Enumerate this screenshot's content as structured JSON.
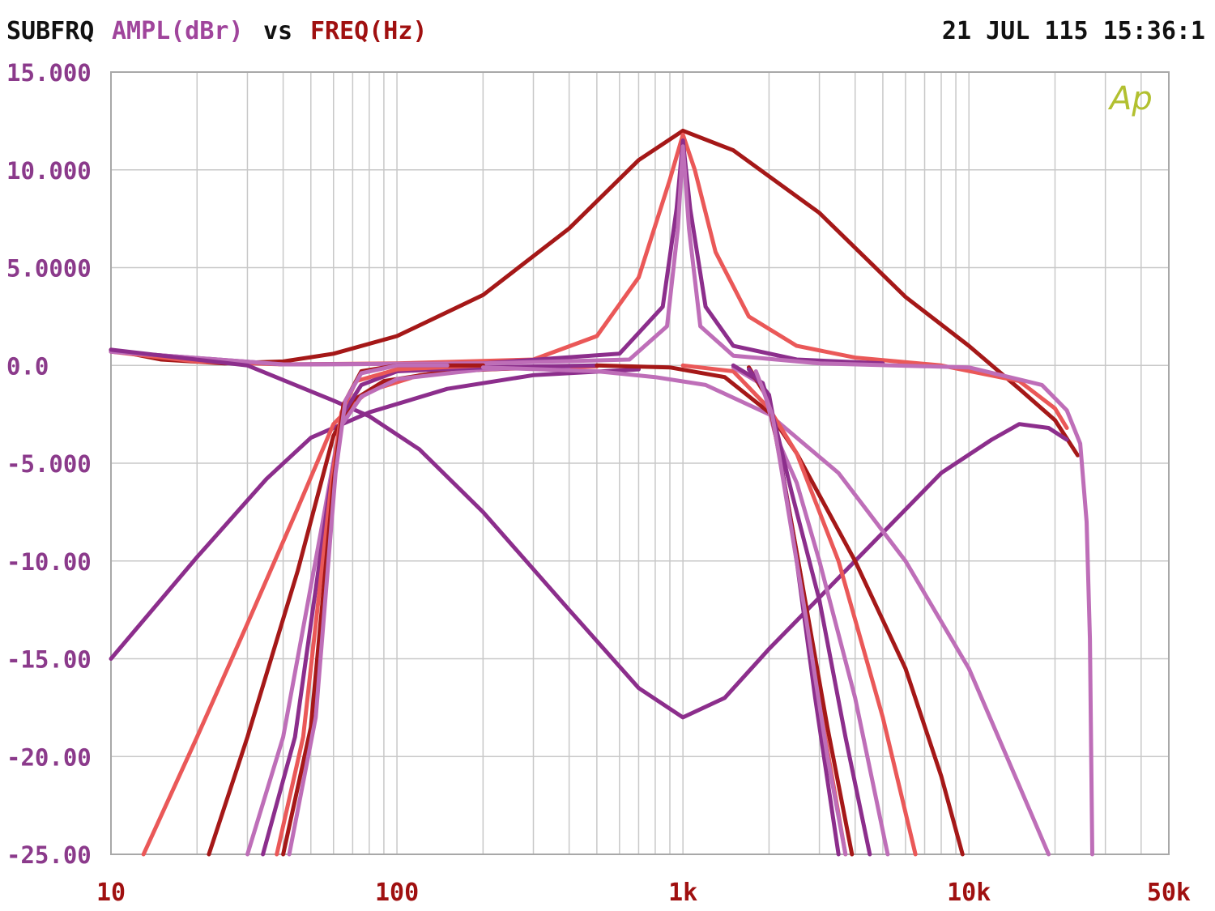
{
  "header": {
    "sweep_name": "SUBFRQ",
    "y_label": "AMPL(dBr)",
    "vs": "vs",
    "x_label": "FREQ(Hz)",
    "timestamp": "21 JUL 115 15:36:1"
  },
  "logo": {
    "text": "Ap"
  },
  "colors": {
    "background": "#ffffff",
    "grid": "#c8c8c8",
    "border": "#a8a8a8",
    "y_tick_label": "#8b3a8b",
    "x_tick_label": "#a01010",
    "header_title": "#111111",
    "header_ylabel": "#a0459c",
    "header_xlabel": "#a01010",
    "logo": "#b2c030",
    "dark_red": "#a51818",
    "salmon": "#ea5858",
    "purple": "#8c2e8c",
    "orchid": "#be6eb8"
  },
  "chart_data": {
    "type": "line",
    "x_scale": "log",
    "xlim": [
      10,
      50000
    ],
    "ylim": [
      -25,
      15
    ],
    "grid": true,
    "legend": "none",
    "y_ticks": [
      {
        "value": 15,
        "label": "15.000"
      },
      {
        "value": 10,
        "label": "10.000"
      },
      {
        "value": 5,
        "label": "5.0000"
      },
      {
        "value": 0,
        "label": "0.0"
      },
      {
        "value": -5,
        "label": "-5.000"
      },
      {
        "value": -10,
        "label": "-10.00"
      },
      {
        "value": -15,
        "label": "-15.00"
      },
      {
        "value": -20,
        "label": "-20.00"
      },
      {
        "value": -25,
        "label": "-25.00"
      }
    ],
    "x_ticks": [
      {
        "value": 10,
        "label": "10"
      },
      {
        "value": 100,
        "label": "100"
      },
      {
        "value": 1000,
        "label": "1k"
      },
      {
        "value": 10000,
        "label": "10k"
      },
      {
        "value": 50000,
        "label": "50k"
      }
    ],
    "series": [
      {
        "color": "dark_red",
        "points": [
          [
            10,
            0.8
          ],
          [
            15,
            0.3
          ],
          [
            25,
            0.1
          ],
          [
            40,
            0.2
          ],
          [
            60,
            0.6
          ],
          [
            100,
            1.5
          ],
          [
            200,
            3.6
          ],
          [
            400,
            7.0
          ],
          [
            700,
            10.5
          ],
          [
            1000,
            12.0
          ],
          [
            1500,
            11.0
          ],
          [
            3000,
            7.8
          ],
          [
            6000,
            3.5
          ],
          [
            10000,
            1.0
          ],
          [
            15000,
            -1.2
          ],
          [
            20000,
            -2.8
          ],
          [
            24000,
            -4.6
          ]
        ]
      },
      {
        "color": "salmon",
        "points": [
          [
            10,
            0.7
          ],
          [
            20,
            0.2
          ],
          [
            40,
            0.05
          ],
          [
            100,
            0.1
          ],
          [
            300,
            0.3
          ],
          [
            500,
            1.5
          ],
          [
            700,
            4.5
          ],
          [
            900,
            9.5
          ],
          [
            1000,
            11.8
          ],
          [
            1100,
            10.0
          ],
          [
            1300,
            5.8
          ],
          [
            1700,
            2.5
          ],
          [
            2500,
            1.0
          ],
          [
            4000,
            0.4
          ],
          [
            8000,
            0.0
          ],
          [
            15000,
            -0.8
          ],
          [
            20000,
            -2.2
          ],
          [
            22000,
            -3.2
          ]
        ]
      },
      {
        "color": "purple",
        "points": [
          [
            10,
            0.7
          ],
          [
            40,
            0.05
          ],
          [
            200,
            0.1
          ],
          [
            600,
            0.6
          ],
          [
            850,
            3.0
          ],
          [
            950,
            8.0
          ],
          [
            1000,
            11.5
          ],
          [
            1060,
            8.0
          ],
          [
            1200,
            3.0
          ],
          [
            1500,
            1.0
          ],
          [
            2500,
            0.3
          ],
          [
            5000,
            0.1
          ]
        ]
      },
      {
        "color": "orchid",
        "points": [
          [
            10,
            0.7
          ],
          [
            40,
            0.05
          ],
          [
            200,
            0.1
          ],
          [
            650,
            0.3
          ],
          [
            880,
            2.0
          ],
          [
            960,
            7.0
          ],
          [
            1000,
            11.2
          ],
          [
            1050,
            7.0
          ],
          [
            1150,
            2.0
          ],
          [
            1500,
            0.5
          ],
          [
            3000,
            0.1
          ],
          [
            10000,
            -0.1
          ],
          [
            18000,
            -1.0
          ],
          [
            22000,
            -2.3
          ],
          [
            24500,
            -4.0
          ],
          [
            25800,
            -8.0
          ],
          [
            26500,
            -14.0
          ],
          [
            27000,
            -25.0
          ]
        ]
      },
      {
        "color": "purple",
        "points": [
          [
            10,
            0.8
          ],
          [
            30,
            0.0
          ],
          [
            60,
            -1.8
          ],
          [
            80,
            -2.6
          ],
          [
            120,
            -4.3
          ],
          [
            200,
            -7.5
          ],
          [
            400,
            -12.5
          ],
          [
            700,
            -16.5
          ],
          [
            1000,
            -18.0
          ],
          [
            1400,
            -17.0
          ],
          [
            2000,
            -14.5
          ],
          [
            4000,
            -10.0
          ],
          [
            8000,
            -5.5
          ],
          [
            12000,
            -3.8
          ],
          [
            15000,
            -3.0
          ],
          [
            19000,
            -3.2
          ],
          [
            22000,
            -3.8
          ]
        ]
      },
      {
        "color": "purple",
        "points": [
          [
            10,
            -15.0
          ],
          [
            20,
            -9.8
          ],
          [
            35,
            -5.8
          ],
          [
            50,
            -3.7
          ],
          [
            80,
            -2.4
          ],
          [
            150,
            -1.2
          ],
          [
            300,
            -0.5
          ],
          [
            700,
            -0.2
          ]
        ]
      },
      {
        "color": "salmon",
        "points": [
          [
            13,
            -25.0
          ],
          [
            20,
            -19.0
          ],
          [
            30,
            -13.2
          ],
          [
            45,
            -7.3
          ],
          [
            60,
            -3.0
          ],
          [
            70,
            -2.0
          ],
          [
            80,
            -1.3
          ],
          [
            120,
            -0.5
          ],
          [
            200,
            -0.2
          ],
          [
            500,
            -0.05
          ]
        ]
      },
      {
        "color": "dark_red",
        "points": [
          [
            22,
            -25.0
          ],
          [
            30,
            -19.0
          ],
          [
            45,
            -10.5
          ],
          [
            60,
            -3.6
          ],
          [
            70,
            -1.8
          ],
          [
            90,
            -0.8
          ],
          [
            150,
            -0.3
          ],
          [
            300,
            -0.1
          ]
        ]
      },
      {
        "color": "orchid",
        "points": [
          [
            30,
            -25.0
          ],
          [
            40,
            -19.0
          ],
          [
            55,
            -8.0
          ],
          [
            63,
            -3.2
          ],
          [
            75,
            -1.6
          ],
          [
            100,
            -0.7
          ],
          [
            200,
            -0.2
          ],
          [
            400,
            -0.05
          ]
        ]
      },
      {
        "color": "purple",
        "points": [
          [
            34,
            -25.0
          ],
          [
            44,
            -19.0
          ],
          [
            58,
            -6.5
          ],
          [
            64,
            -2.6
          ],
          [
            75,
            -1.0
          ],
          [
            100,
            -0.3
          ],
          [
            200,
            -0.1
          ],
          [
            500,
            0.0
          ]
        ]
      },
      {
        "color": "salmon",
        "points": [
          [
            38,
            -25.0
          ],
          [
            47,
            -19.0
          ],
          [
            59,
            -6.0
          ],
          [
            64,
            -2.4
          ],
          [
            72,
            -0.8
          ],
          [
            100,
            -0.2
          ],
          [
            200,
            0.0
          ]
        ]
      },
      {
        "color": "dark_red",
        "points": [
          [
            40,
            -25.0
          ],
          [
            50,
            -18.5
          ],
          [
            60,
            -6.0
          ],
          [
            65,
            -2.0
          ],
          [
            75,
            -0.3
          ],
          [
            100,
            0.0
          ],
          [
            200,
            0.0
          ]
        ]
      },
      {
        "color": "orchid",
        "points": [
          [
            42,
            -25.0
          ],
          [
            52,
            -18.0
          ],
          [
            61,
            -5.5
          ],
          [
            66,
            -1.8
          ],
          [
            75,
            -0.4
          ],
          [
            100,
            0.0
          ],
          [
            150,
            0.0
          ]
        ]
      },
      {
        "color": "orchid",
        "points": [
          [
            200,
            -0.1
          ],
          [
            500,
            -0.3
          ],
          [
            800,
            -0.6
          ],
          [
            1200,
            -1.0
          ],
          [
            2000,
            -2.5
          ],
          [
            3500,
            -5.5
          ],
          [
            6000,
            -10.0
          ],
          [
            10000,
            -15.5
          ],
          [
            15000,
            -21.5
          ],
          [
            19000,
            -25.0
          ]
        ]
      },
      {
        "color": "dark_red",
        "points": [
          [
            500,
            0.0
          ],
          [
            900,
            -0.1
          ],
          [
            1400,
            -0.6
          ],
          [
            2000,
            -2.4
          ],
          [
            2500,
            -4.5
          ],
          [
            4000,
            -10.0
          ],
          [
            6000,
            -15.5
          ],
          [
            8000,
            -21.0
          ],
          [
            9500,
            -25.0
          ]
        ]
      },
      {
        "color": "salmon",
        "points": [
          [
            1000,
            0.0
          ],
          [
            1500,
            -0.3
          ],
          [
            2000,
            -2.2
          ],
          [
            2500,
            -4.5
          ],
          [
            3500,
            -10.0
          ],
          [
            5000,
            -18.0
          ],
          [
            6500,
            -25.0
          ]
        ]
      },
      {
        "color": "orchid",
        "points": [
          [
            1500,
            -0.1
          ],
          [
            1900,
            -1.0
          ],
          [
            2100,
            -3.5
          ],
          [
            2500,
            -6.0
          ],
          [
            3000,
            -10.0
          ],
          [
            4000,
            -17.0
          ],
          [
            5200,
            -25.0
          ]
        ]
      },
      {
        "color": "purple",
        "points": [
          [
            1500,
            0.0
          ],
          [
            1900,
            -0.9
          ],
          [
            2100,
            -3.0
          ],
          [
            2400,
            -6.5
          ],
          [
            3000,
            -12.0
          ],
          [
            3700,
            -19.0
          ],
          [
            4500,
            -25.0
          ]
        ]
      },
      {
        "color": "salmon",
        "points": [
          [
            1700,
            -0.1
          ],
          [
            2000,
            -1.8
          ],
          [
            2200,
            -5.0
          ],
          [
            2600,
            -11.0
          ],
          [
            3100,
            -18.5
          ],
          [
            3700,
            -25.0
          ]
        ]
      },
      {
        "color": "dark_red",
        "points": [
          [
            1700,
            -0.1
          ],
          [
            2000,
            -1.8
          ],
          [
            2200,
            -5.0
          ],
          [
            2600,
            -11.0
          ],
          [
            3200,
            -18.5
          ],
          [
            3900,
            -25.0
          ]
        ]
      },
      {
        "color": "purple",
        "points": [
          [
            1700,
            -0.2
          ],
          [
            2000,
            -1.5
          ],
          [
            2150,
            -4.0
          ],
          [
            2500,
            -10.0
          ],
          [
            2900,
            -17.0
          ],
          [
            3500,
            -25.0
          ]
        ]
      },
      {
        "color": "orchid",
        "points": [
          [
            1800,
            -0.3
          ],
          [
            2050,
            -2.5
          ],
          [
            2250,
            -6.0
          ],
          [
            2700,
            -13.0
          ],
          [
            3200,
            -20.0
          ],
          [
            3700,
            -25.0
          ]
        ]
      }
    ]
  }
}
